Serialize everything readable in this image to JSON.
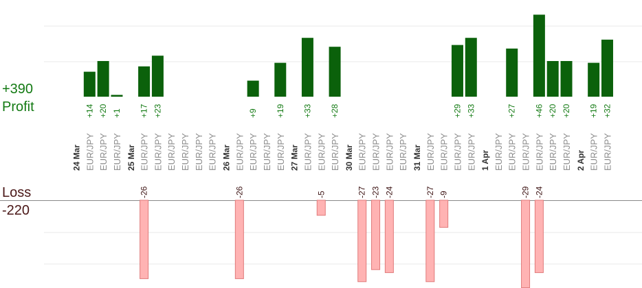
{
  "labels": {
    "profit_total": "+390",
    "profit_label": "Profit",
    "loss_label": "Loss",
    "loss_total": "-220"
  },
  "colors": {
    "profit_bar": "#0b610b",
    "profit_text": "#137a13",
    "loss_fill": "#ffb3b3",
    "loss_stroke": "#e07a7a",
    "grid": "#e8e8e8",
    "baseline": "#888888",
    "pair_text": "#8c8c8c",
    "date_text": "#333333"
  },
  "chart_data": {
    "type": "bar",
    "title": "",
    "xlabel": "",
    "ylabel": "",
    "categories": [
      "24 Mar",
      "EUR/JPY",
      "EUR/JPY",
      "EUR/JPY",
      "25 Mar",
      "EUR/JPY",
      "EUR/JPY",
      "EUR/JPY",
      "EUR/JPY",
      "EUR/JPY",
      "EUR/JPY",
      "26 Mar",
      "EUR/JPY",
      "EUR/JPY",
      "EUR/JPY",
      "EUR/JPY",
      "27 Mar",
      "EUR/JPY",
      "EUR/JPY",
      "EUR/JPY",
      "30 Mar",
      "EUR/JPY",
      "EUR/JPY",
      "EUR/JPY",
      "EUR/JPY",
      "31 Mar",
      "EUR/JPY",
      "EUR/JPY",
      "EUR/JPY",
      "EUR/JPY",
      "1 Apr",
      "EUR/JPY",
      "EUR/JPY",
      "EUR/JPY",
      "EUR/JPY",
      "EUR/JPY",
      "EUR/JPY",
      "2 Apr",
      "EUR/JPY",
      "EUR/JPY"
    ],
    "date_markers": [
      0,
      4,
      11,
      16,
      20,
      25,
      30,
      37
    ],
    "series": [
      {
        "name": "Profit",
        "values": [
          null,
          14,
          20,
          1,
          null,
          17,
          23,
          null,
          null,
          null,
          null,
          null,
          null,
          9,
          null,
          19,
          null,
          33,
          null,
          28,
          null,
          null,
          null,
          null,
          null,
          null,
          null,
          null,
          29,
          33,
          null,
          null,
          27,
          null,
          46,
          20,
          20,
          null,
          19,
          32
        ],
        "labels": [
          null,
          "+14",
          "+20",
          "+1",
          null,
          "+17",
          "+23",
          null,
          null,
          null,
          null,
          null,
          null,
          "+9",
          null,
          "+19",
          null,
          "+33",
          null,
          "+28",
          null,
          null,
          null,
          null,
          null,
          null,
          null,
          null,
          "+29",
          "+33",
          null,
          null,
          "+27",
          null,
          "+46",
          "+20",
          "+20",
          null,
          "+19",
          "+32"
        ]
      },
      {
        "name": "Loss",
        "values": [
          null,
          null,
          null,
          null,
          null,
          -26,
          null,
          null,
          null,
          null,
          null,
          null,
          -26,
          null,
          null,
          null,
          null,
          null,
          -5,
          null,
          null,
          -27,
          -23,
          -24,
          null,
          null,
          -27,
          -9,
          null,
          null,
          null,
          null,
          null,
          -29,
          -24,
          null,
          null,
          null,
          null,
          null
        ],
        "labels": [
          null,
          null,
          null,
          null,
          null,
          "-26",
          null,
          null,
          null,
          null,
          null,
          null,
          "-26",
          null,
          null,
          null,
          null,
          null,
          "-5",
          null,
          null,
          "-27",
          "-23",
          "-24",
          null,
          null,
          "-27",
          "-9",
          null,
          null,
          null,
          null,
          null,
          "-29",
          "-24",
          null,
          null,
          null,
          null,
          null
        ]
      }
    ],
    "grid": true,
    "legend": "none"
  }
}
